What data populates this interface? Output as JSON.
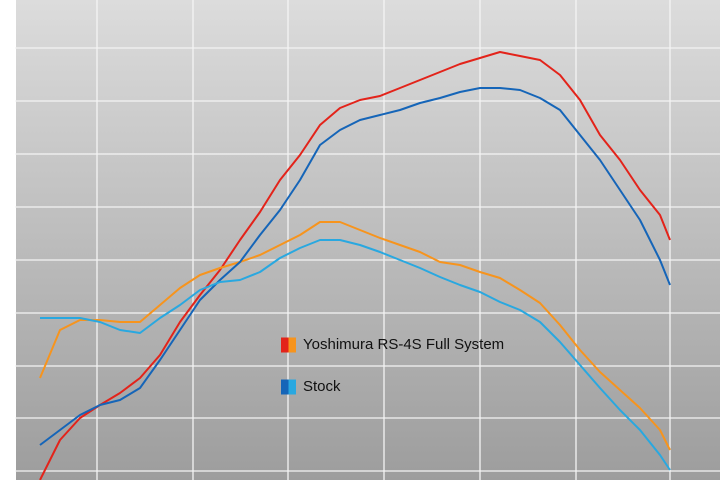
{
  "chart_data": {
    "type": "line",
    "x": [
      25,
      45,
      65,
      85,
      105,
      125,
      145,
      165,
      185,
      205,
      225,
      245,
      265,
      285,
      305,
      325,
      345,
      365,
      385,
      405,
      425,
      445,
      465,
      485,
      505,
      525,
      545,
      565,
      585,
      605,
      625,
      645,
      655
    ],
    "xlim": [
      0,
      705
    ],
    "xticks": [
      82,
      178,
      273,
      369,
      465,
      561,
      655
    ],
    "ylim": [
      0,
      480
    ],
    "yticks": [
      9,
      62,
      114,
      167,
      220,
      273,
      326,
      379,
      432
    ],
    "grid": true,
    "series": [
      {
        "name": "Yoshimura RS-4S Full System",
        "colors": [
          "#e3231a",
          "#f7941d"
        ],
        "lines": [
          {
            "color": "#e3231a",
            "values": [
              0,
              40,
              62,
              75,
              87,
              102,
              125,
              158,
              185,
              210,
              240,
              268,
              300,
              325,
              355,
              372,
              380,
              384,
              392,
              400,
              408,
              416,
              422,
              428,
              424,
              420,
              405,
              380,
              345,
              320,
              290,
              265,
              240
            ]
          },
          {
            "color": "#f7941d",
            "values": [
              102,
              150,
              160,
              160,
              158,
              158,
              175,
              192,
              205,
              212,
              218,
              225,
              235,
              245,
              258,
              258,
              250,
              242,
              235,
              228,
              218,
              215,
              208,
              202,
              190,
              177,
              155,
              130,
              108,
              90,
              72,
              50,
              30
            ]
          }
        ]
      },
      {
        "name": "Stock",
        "colors": [
          "#1565b8",
          "#29a8e0"
        ],
        "lines": [
          {
            "color": "#1565b8",
            "values": [
              35,
              50,
              65,
              75,
              80,
              92,
              120,
              150,
              180,
              200,
              218,
              245,
              270,
              300,
              335,
              350,
              360,
              365,
              370,
              377,
              382,
              388,
              392,
              392,
              390,
              382,
              370,
              345,
              320,
              290,
              260,
              220,
              195
            ]
          },
          {
            "color": "#29a8e0",
            "values": [
              162,
              162,
              162,
              158,
              150,
              147,
              162,
              175,
              190,
              198,
              200,
              208,
              222,
              232,
              240,
              240,
              235,
              228,
              220,
              212,
              203,
              195,
              188,
              178,
              170,
              158,
              138,
              115,
              92,
              70,
              50,
              25,
              10
            ]
          }
        ]
      }
    ]
  }
}
